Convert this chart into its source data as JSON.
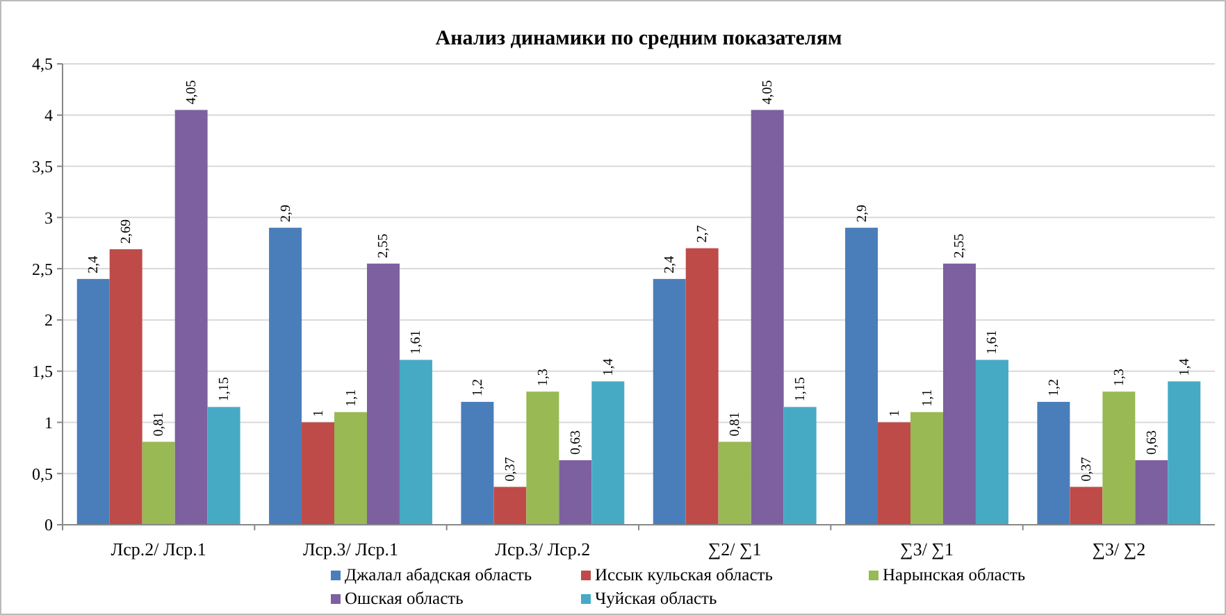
{
  "chart_data": {
    "type": "bar",
    "title": "Анализ динамики по средним показателям",
    "categories": [
      "Лср.2/ Лср.1",
      "Лср.3/ Лср.1",
      "Лср.3/ Лср.2",
      "∑2/ ∑1",
      "∑3/ ∑1",
      "∑3/ ∑2"
    ],
    "series": [
      {
        "name": "Джалал абадская область",
        "color": "#4a7ebb",
        "values": [
          2.4,
          2.9,
          1.2,
          2.4,
          2.9,
          1.2
        ],
        "value_labels": [
          "2,4",
          "2,9",
          "1,2",
          "2,4",
          "2,9",
          "1,2"
        ]
      },
      {
        "name": "Иссык кульская область",
        "color": "#be4b48",
        "values": [
          2.69,
          1,
          0.37,
          2.7,
          1,
          0.37
        ],
        "value_labels": [
          "2,69",
          "1",
          "0,37",
          "2,7",
          "1",
          "0,37"
        ]
      },
      {
        "name": "Нарынская область",
        "color": "#98b954",
        "values": [
          0.81,
          1.1,
          1.3,
          0.81,
          1.1,
          1.3
        ],
        "value_labels": [
          "0,81",
          "1,1",
          "1,3",
          "0,81",
          "1,1",
          "1,3"
        ]
      },
      {
        "name": "Ошская область",
        "color": "#7d60a0",
        "values": [
          4.05,
          2.55,
          0.63,
          4.05,
          2.55,
          0.63
        ],
        "value_labels": [
          "4,05",
          "2,55",
          "0,63",
          "4,05",
          "2,55",
          "0,63"
        ]
      },
      {
        "name": "Чуйская область",
        "color": "#46aac5",
        "values": [
          1.15,
          1.61,
          1.4,
          1.15,
          1.61,
          1.4
        ],
        "value_labels": [
          "1,15",
          "1,61",
          "1,4",
          "1,15",
          "1,61",
          "1,4"
        ]
      }
    ],
    "ylim": [
      0,
      4.5
    ],
    "yticks": [
      0,
      {
        "value": 0.5,
        "label": "0,5"
      },
      1,
      {
        "value": 1.5,
        "label": "1,5"
      },
      2,
      {
        "value": 2.5,
        "label": "2,5"
      },
      3,
      {
        "value": 3.5,
        "label": "3,5"
      },
      4,
      {
        "value": 4.5,
        "label": "4,5"
      }
    ],
    "grid": "y",
    "legend": "bottom"
  }
}
